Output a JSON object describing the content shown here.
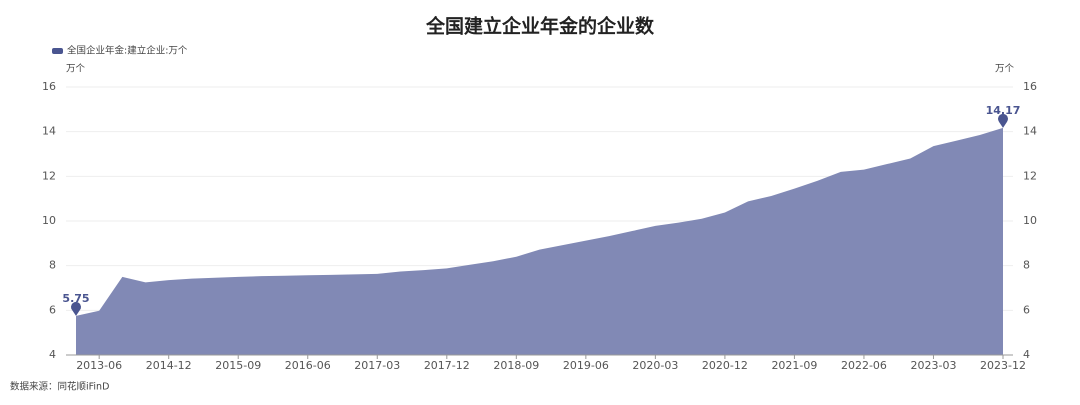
{
  "chart_data": {
    "type": "area",
    "title": "全国建立企业年金的企业数",
    "legend_label": "全国企业年金:建立企业:万个",
    "y_unit": "万个",
    "source": "数据来源：同花顺iFinD",
    "color": "#8189b5",
    "marker_color": "#4a5590",
    "categories": [
      null,
      "2013-06",
      null,
      null,
      "2014-12",
      null,
      null,
      "2015-09",
      null,
      null,
      "2016-06",
      null,
      null,
      "2017-03",
      null,
      null,
      "2017-12",
      null,
      null,
      "2018-09",
      null,
      null,
      "2019-06",
      null,
      null,
      "2020-03",
      null,
      null,
      "2020-12",
      null,
      null,
      "2021-09",
      null,
      null,
      "2022-06",
      null,
      null,
      "2023-03",
      null,
      null,
      "2023-12"
    ],
    "series": [
      {
        "name": "全国企业年金:建立企业:万个",
        "color": "#8189b5",
        "values": [
          5.75,
          5.98,
          7.5,
          7.25,
          7.35,
          7.42,
          7.46,
          7.5,
          7.53,
          7.55,
          7.57,
          7.59,
          7.61,
          7.63,
          7.74,
          7.8,
          7.88,
          8.04,
          8.2,
          8.4,
          8.72,
          8.92,
          9.12,
          9.32,
          9.55,
          9.78,
          9.93,
          10.1,
          10.38,
          10.88,
          11.12,
          11.45,
          11.8,
          12.2,
          12.3,
          12.55,
          12.8,
          13.35,
          13.6,
          13.85,
          14.17
        ]
      }
    ],
    "ylim": [
      4,
      16
    ],
    "yticks": [
      4,
      6,
      8,
      10,
      12,
      14,
      16
    ],
    "grid": true
  }
}
